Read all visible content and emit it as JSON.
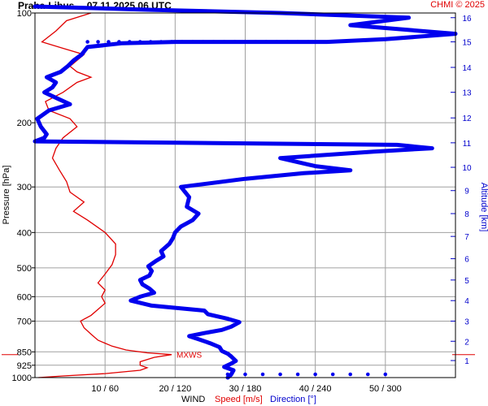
{
  "header": {
    "station": "Praha-Libus",
    "datetime": "07.11.2025 06 UTC",
    "copyright": "CHMI © 2025"
  },
  "chart_data": {
    "type": "line",
    "title": "Praha-Libus 07.11.2025 06 UTC",
    "ylabel": "Pressure [hPa]",
    "y2label": "Altitude [km]",
    "xlabel": "WIND",
    "xlabel_speed": "Speed [m/s]",
    "xlabel_direction": "Direction [°]",
    "annotation": "MXWS",
    "pressure_ticks": [
      100,
      200,
      300,
      400,
      500,
      600,
      700,
      850,
      925,
      1000
    ],
    "pressure_ticks_labels": [
      "100",
      "200",
      "300",
      "400",
      "500",
      "600",
      "700",
      "850",
      "925",
      "1000"
    ],
    "altitude_ticks_km": [
      1,
      2,
      3,
      4,
      5,
      6,
      7,
      8,
      9,
      10,
      11,
      12,
      13,
      14,
      15,
      16
    ],
    "altitude_ticks_labels": [
      "1",
      "2",
      "3",
      "4",
      "5",
      "6",
      "7",
      "8",
      "9",
      "10",
      "11",
      "12",
      "13",
      "14",
      "15",
      "16"
    ],
    "altitude_tick_pressure": [
      898,
      795,
      700,
      615,
      540,
      472,
      410,
      355,
      307,
      265,
      227,
      194,
      165,
      141,
      120,
      103
    ],
    "x_ticks": [
      {
        "speed": 10,
        "dir": 60,
        "label": "10 / 60"
      },
      {
        "speed": 20,
        "dir": 120,
        "label": "20 / 120"
      },
      {
        "speed": 30,
        "dir": 180,
        "label": "30 / 180"
      },
      {
        "speed": 40,
        "dir": 240,
        "label": "40 / 240"
      },
      {
        "speed": 50,
        "dir": 300,
        "label": "50 / 300"
      }
    ],
    "xlim_speed": [
      0,
      60
    ],
    "xlim_dir": [
      0,
      360
    ],
    "ylim_pressure": [
      1000,
      100
    ],
    "y_scale": "log",
    "grid": true,
    "series": [
      {
        "name": "Speed [m/s]",
        "color": "#e00000",
        "points": [
          [
            1000,
            0.5
          ],
          [
            990,
            4
          ],
          [
            975,
            10
          ],
          [
            955,
            15
          ],
          [
            940,
            16
          ],
          [
            925,
            15
          ],
          [
            905,
            15
          ],
          [
            880,
            17
          ],
          [
            865,
            19.5
          ],
          [
            855,
            16
          ],
          [
            840,
            13
          ],
          [
            820,
            11
          ],
          [
            790,
            9
          ],
          [
            760,
            8
          ],
          [
            730,
            7
          ],
          [
            700,
            6.5
          ],
          [
            675,
            8
          ],
          [
            650,
            9
          ],
          [
            625,
            10
          ],
          [
            600,
            9.5
          ],
          [
            575,
            10
          ],
          [
            550,
            9
          ],
          [
            520,
            10
          ],
          [
            490,
            11
          ],
          [
            460,
            11.5
          ],
          [
            430,
            11.5
          ],
          [
            400,
            10
          ],
          [
            370,
            7.5
          ],
          [
            350,
            5.5
          ],
          [
            330,
            7
          ],
          [
            310,
            5
          ],
          [
            290,
            4.5
          ],
          [
            270,
            3.5
          ],
          [
            250,
            2.5
          ],
          [
            235,
            3
          ],
          [
            220,
            4
          ],
          [
            205,
            6
          ],
          [
            195,
            5
          ],
          [
            185,
            2
          ],
          [
            175,
            1.5
          ],
          [
            165,
            4
          ],
          [
            155,
            6
          ],
          [
            150,
            8
          ],
          [
            145,
            6
          ],
          [
            140,
            5
          ],
          [
            130,
            7
          ],
          [
            125,
            4
          ],
          [
            120,
            1
          ],
          [
            112,
            3
          ],
          [
            105,
            4.5
          ],
          [
            100,
            8
          ]
        ]
      },
      {
        "name": "Direction [°]",
        "color": "#0000ee",
        "points": [
          [
            1000,
            165
          ],
          [
            980,
            168
          ],
          [
            955,
            170
          ],
          [
            935,
            162
          ],
          [
            915,
            168
          ],
          [
            900,
            172
          ],
          [
            875,
            168
          ],
          [
            860,
            165
          ],
          [
            845,
            160
          ],
          [
            825,
            158
          ],
          [
            805,
            150
          ],
          [
            785,
            140
          ],
          [
            770,
            132
          ],
          [
            755,
            145
          ],
          [
            740,
            160
          ],
          [
            725,
            168
          ],
          [
            705,
            175
          ],
          [
            690,
            165
          ],
          [
            670,
            148
          ],
          [
            655,
            145
          ],
          [
            635,
            100
          ],
          [
            615,
            82
          ],
          [
            600,
            90
          ],
          [
            585,
            102
          ],
          [
            570,
            98
          ],
          [
            555,
            92
          ],
          [
            540,
            90
          ],
          [
            525,
            98
          ],
          [
            510,
            100
          ],
          [
            495,
            97
          ],
          [
            480,
            103
          ],
          [
            465,
            110
          ],
          [
            450,
            108
          ],
          [
            430,
            115
          ],
          [
            415,
            118
          ],
          [
            400,
            120
          ],
          [
            385,
            125
          ],
          [
            370,
            135
          ],
          [
            355,
            140
          ],
          [
            340,
            130
          ],
          [
            320,
            132
          ],
          [
            300,
            125
          ],
          [
            285,
            180
          ],
          [
            275,
            230
          ],
          [
            270,
            270
          ],
          [
            263,
            240
          ],
          [
            250,
            210
          ],
          [
            240,
            290
          ],
          [
            235,
            340
          ],
          [
            230,
            310
          ],
          [
            225,
            0
          ],
          [
            220,
            8
          ],
          [
            215,
            10
          ],
          [
            205,
            5
          ],
          [
            195,
            2
          ],
          [
            185,
            12
          ],
          [
            178,
            30
          ],
          [
            172,
            20
          ],
          [
            165,
            8
          ],
          [
            160,
            15
          ],
          [
            155,
            18
          ],
          [
            150,
            10
          ],
          [
            145,
            22
          ],
          [
            140,
            28
          ],
          [
            135,
            33
          ],
          [
            130,
            40
          ],
          [
            124,
            45
          ],
          [
            121,
            75
          ],
          [
            120,
            120
          ],
          [
            120,
            210
          ],
          [
            120,
            250
          ],
          [
            118,
            300
          ],
          [
            114,
            360
          ],
          [
            108,
            270
          ],
          [
            103,
            320
          ],
          [
            100,
            210
          ],
          [
            98,
            100
          ],
          [
            96,
            0
          ]
        ]
      }
    ],
    "surface_wind_dots": {
      "pressure": 1000,
      "directions": [
        165,
        180,
        210,
        240,
        270,
        300
      ]
    },
    "dotted_segment": {
      "pressure": 120,
      "from_dir": 45,
      "to_dir": 240
    }
  }
}
